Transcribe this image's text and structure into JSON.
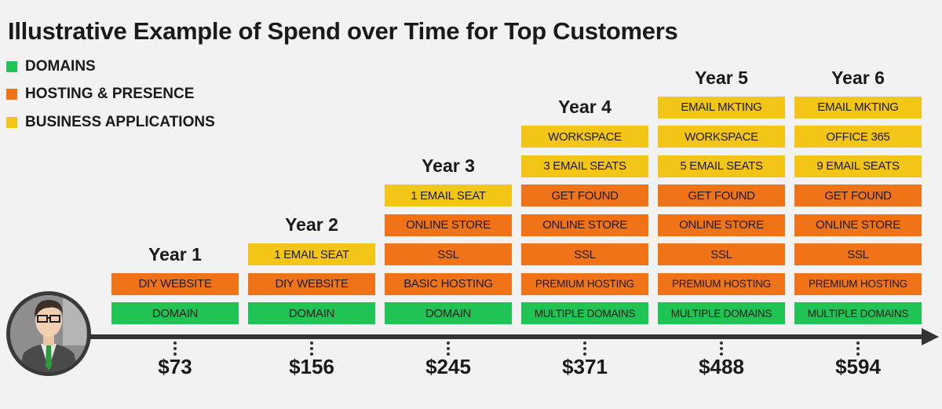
{
  "title": "Illustrative Example of Spend over Time for Top Customers",
  "colors": {
    "domains": "#1fc454",
    "hosting": "#f07318",
    "business": "#f2c516",
    "axis": "#333333",
    "background": "#f2f2f2"
  },
  "legend": [
    {
      "label": "DOMAINS",
      "category": "domains"
    },
    {
      "label": "HOSTING & PRESENCE",
      "category": "hosting"
    },
    {
      "label": "BUSINESS APPLICATIONS",
      "category": "business"
    }
  ],
  "years": [
    {
      "label": "Year 1",
      "spend": "$73",
      "items": [
        {
          "label": "DOMAIN",
          "category": "domains"
        },
        {
          "label": "DIY WEBSITE",
          "category": "hosting"
        }
      ]
    },
    {
      "label": "Year 2",
      "spend": "$156",
      "items": [
        {
          "label": "DOMAIN",
          "category": "domains"
        },
        {
          "label": "DIY WEBSITE",
          "category": "hosting"
        },
        {
          "label": "1 EMAIL SEAT",
          "category": "business"
        }
      ]
    },
    {
      "label": "Year 3",
      "spend": "$245",
      "items": [
        {
          "label": "DOMAIN",
          "category": "domains"
        },
        {
          "label": "BASIC HOSTING",
          "category": "hosting"
        },
        {
          "label": "SSL",
          "category": "hosting"
        },
        {
          "label": "ONLINE STORE",
          "category": "hosting"
        },
        {
          "label": "1 EMAIL SEAT",
          "category": "business"
        }
      ]
    },
    {
      "label": "Year 4",
      "spend": "$371",
      "items": [
        {
          "label": "MULTIPLE DOMAINS",
          "category": "domains"
        },
        {
          "label": "PREMIUM HOSTING",
          "category": "hosting"
        },
        {
          "label": "SSL",
          "category": "hosting"
        },
        {
          "label": "ONLINE STORE",
          "category": "hosting"
        },
        {
          "label": "GET FOUND",
          "category": "hosting"
        },
        {
          "label": "3 EMAIL SEATS",
          "category": "business"
        },
        {
          "label": "WORKSPACE",
          "category": "business"
        }
      ]
    },
    {
      "label": "Year 5",
      "spend": "$488",
      "items": [
        {
          "label": "MULTIPLE DOMAINS",
          "category": "domains"
        },
        {
          "label": "PREMIUM HOSTING",
          "category": "hosting"
        },
        {
          "label": "SSL",
          "category": "hosting"
        },
        {
          "label": "ONLINE STORE",
          "category": "hosting"
        },
        {
          "label": "GET FOUND",
          "category": "hosting"
        },
        {
          "label": "5 EMAIL SEATS",
          "category": "business"
        },
        {
          "label": "WORKSPACE",
          "category": "business"
        },
        {
          "label": "EMAIL MKTING",
          "category": "business"
        }
      ]
    },
    {
      "label": "Year 6",
      "spend": "$594",
      "items": [
        {
          "label": "MULTIPLE DOMAINS",
          "category": "domains"
        },
        {
          "label": "PREMIUM HOSTING",
          "category": "hosting"
        },
        {
          "label": "SSL",
          "category": "hosting"
        },
        {
          "label": "ONLINE STORE",
          "category": "hosting"
        },
        {
          "label": "GET FOUND",
          "category": "hosting"
        },
        {
          "label": "9 EMAIL SEATS",
          "category": "business"
        },
        {
          "label": "OFFICE 365",
          "category": "business"
        },
        {
          "label": "EMAIL MKTING",
          "category": "business"
        }
      ]
    }
  ],
  "avatar": {
    "icon": "customer-avatar-icon"
  }
}
